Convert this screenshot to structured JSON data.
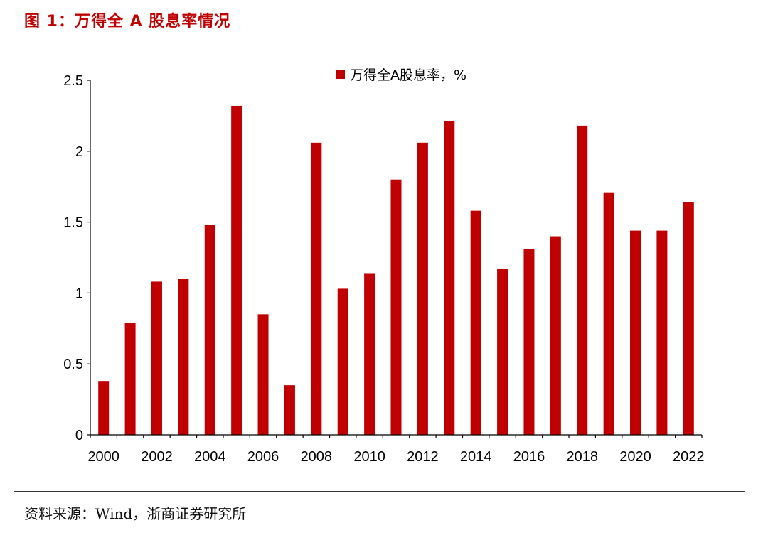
{
  "header": {
    "title": "图 1：万得全 A 股息率情况"
  },
  "footer": {
    "source": "资料来源：Wind，浙商证券研究所"
  },
  "chart_data": {
    "type": "bar",
    "categories": [
      "2000",
      "2001",
      "2002",
      "2003",
      "2004",
      "2005",
      "2006",
      "2007",
      "2008",
      "2009",
      "2010",
      "2011",
      "2012",
      "2013",
      "2014",
      "2015",
      "2016",
      "2017",
      "2018",
      "2019",
      "2020",
      "2021",
      "2022"
    ],
    "x_tick_labels": [
      "2000",
      "2002",
      "2004",
      "2006",
      "2008",
      "2010",
      "2012",
      "2014",
      "2016",
      "2018",
      "2020",
      "2022"
    ],
    "y_tick_labels": [
      "0",
      "0.5",
      "1",
      "1.5",
      "2",
      "2.5"
    ],
    "series": [
      {
        "name": "万得全A股息率，%",
        "color": "#c00000",
        "values": [
          0.38,
          0.79,
          1.08,
          1.1,
          1.48,
          2.32,
          0.85,
          0.35,
          2.06,
          1.03,
          1.14,
          1.8,
          2.06,
          2.21,
          1.58,
          1.17,
          1.31,
          1.4,
          2.18,
          1.71,
          1.44,
          1.44,
          1.64
        ]
      }
    ],
    "ylim": [
      0,
      2.5
    ],
    "grid": false,
    "legend_position": "top-center",
    "xlabel": "",
    "ylabel": ""
  }
}
